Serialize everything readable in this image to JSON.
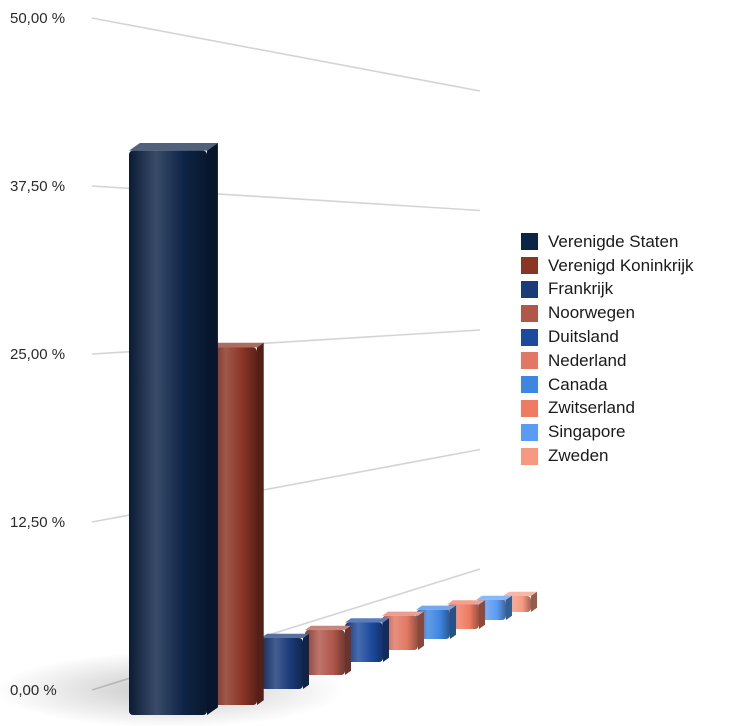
{
  "chart_data": {
    "type": "bar",
    "title": "",
    "xlabel": "",
    "ylabel": "",
    "ylim": [
      0,
      50
    ],
    "y_ticks": [
      "0,00 %",
      "12,50 %",
      "25,00 %",
      "37,50 %",
      "50,00 %"
    ],
    "y_tick_values": [
      0,
      12.5,
      25,
      37.5,
      50
    ],
    "grid": true,
    "legend_position": "right",
    "style": "3d-perspective",
    "categories": [
      "Verenigde Staten",
      "Verenigd Koninkrijk",
      "Frankrijk",
      "Noorwegen",
      "Duitsland",
      "Nederland",
      "Canada",
      "Zwitserland",
      "Singapore",
      "Zweden"
    ],
    "values": [
      41.5,
      27.5,
      6.0,
      5.5,
      5.0,
      4.5,
      4.0,
      3.5,
      3.0,
      2.5
    ],
    "colors": [
      "#0e2447",
      "#8a3424",
      "#1a3a78",
      "#b0574a",
      "#1d4a9e",
      "#e27863",
      "#3f86e0",
      "#ef7b63",
      "#5a9cf4",
      "#f59a80"
    ]
  }
}
